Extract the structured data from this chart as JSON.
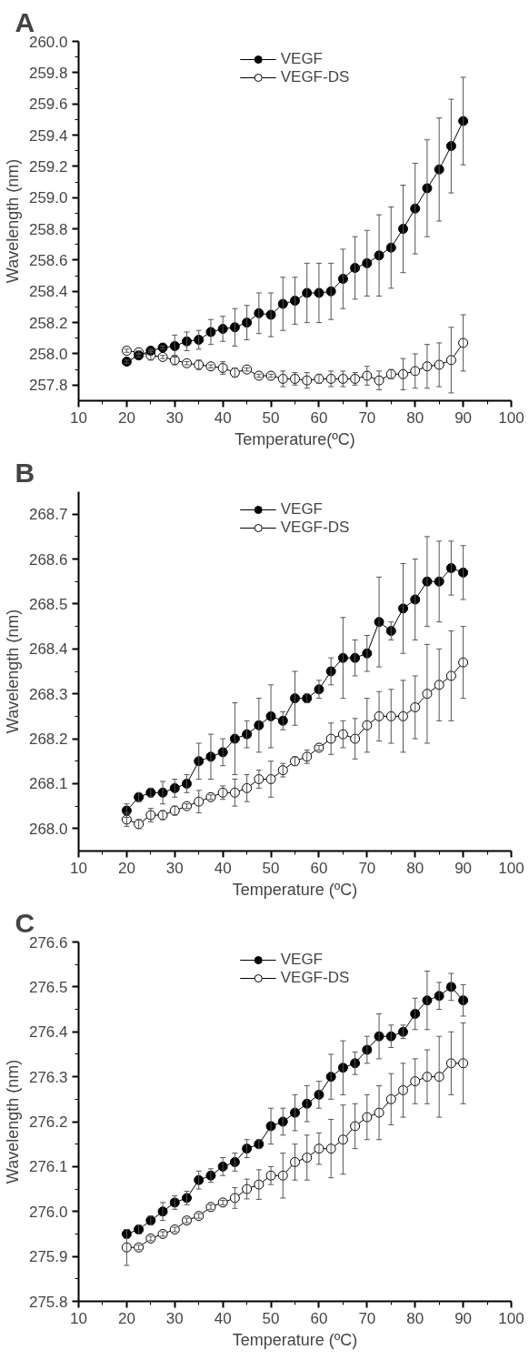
{
  "chart_data": [
    {
      "type": "line",
      "title": "A",
      "xlabel": "Temperature(ºC)",
      "ylabel": "Wavelength (nm)",
      "legend": "top",
      "marker": "circle",
      "grid": false,
      "x": [
        20,
        22.5,
        25,
        27.5,
        30,
        32.5,
        35,
        37.5,
        40,
        42.5,
        45,
        47.5,
        50,
        52.5,
        55,
        57.5,
        60,
        62.5,
        65,
        67.5,
        70,
        72.5,
        75,
        77.5,
        80,
        82.5,
        85,
        87.5,
        90
      ],
      "xlim": [
        10,
        100
      ],
      "xticks": [
        10,
        20,
        30,
        40,
        50,
        60,
        70,
        80,
        90,
        100
      ],
      "ylim": [
        257.7,
        260.0
      ],
      "yticks": [
        {
          "value": 257.8,
          "label": "257.8"
        },
        {
          "value": 258.0,
          "label": "258.0"
        },
        {
          "value": 258.2,
          "label": "258.2"
        },
        {
          "value": 258.4,
          "label": "258.4"
        },
        {
          "value": 258.6,
          "label": "258.6"
        },
        {
          "value": 258.8,
          "label": "258.8"
        },
        {
          "value": 259.0,
          "label": "259.0"
        },
        {
          "value": 259.2,
          "label": "259.2"
        },
        {
          "value": 259.4,
          "label": "259.4"
        },
        {
          "value": 259.6,
          "label": "259.6"
        },
        {
          "value": 259.8,
          "label": "259.8"
        },
        {
          "value": 260.0,
          "label": "260.0"
        }
      ],
      "series": [
        {
          "name": "VEGF",
          "color": "#000000",
          "values": [
            257.95,
            257.99,
            258.02,
            258.04,
            258.05,
            258.08,
            258.09,
            258.14,
            258.16,
            258.17,
            258.2,
            258.26,
            258.25,
            258.32,
            258.34,
            258.39,
            258.39,
            258.4,
            258.48,
            258.55,
            258.58,
            258.63,
            258.68,
            258.8,
            258.93,
            259.06,
            259.18,
            259.33,
            259.49
          ],
          "errors": [
            0.01,
            0.01,
            0.01,
            0.01,
            0.07,
            0.06,
            0.06,
            0.08,
            0.08,
            0.12,
            0.11,
            0.13,
            0.14,
            0.17,
            0.15,
            0.19,
            0.19,
            0.18,
            0.19,
            0.2,
            0.21,
            0.26,
            0.26,
            0.28,
            0.29,
            0.31,
            0.33,
            0.3,
            0.28
          ]
        },
        {
          "name": "VEGF-DS",
          "color": "#000000",
          "values": [
            258.02,
            258.01,
            257.99,
            257.98,
            257.96,
            257.94,
            257.93,
            257.92,
            257.91,
            257.88,
            257.9,
            257.86,
            257.86,
            257.84,
            257.84,
            257.83,
            257.84,
            257.84,
            257.84,
            257.84,
            257.86,
            257.83,
            257.87,
            257.87,
            257.89,
            257.92,
            257.93,
            257.96,
            258.07
          ],
          "errors": [
            0.01,
            0.01,
            0.03,
            0.01,
            0.03,
            0.01,
            0.03,
            0.01,
            0.04,
            0.03,
            0.01,
            0.01,
            0.01,
            0.05,
            0.04,
            0.05,
            0.03,
            0.05,
            0.05,
            0.04,
            0.06,
            0.06,
            0.03,
            0.1,
            0.11,
            0.14,
            0.14,
            0.21,
            0.18
          ]
        }
      ]
    },
    {
      "type": "line",
      "title": "B",
      "xlabel": "Temperature (ºC)",
      "ylabel": "Wavelength (nm)",
      "legend": "top",
      "marker": "circle",
      "grid": false,
      "x": [
        20,
        22.5,
        25,
        27.5,
        30,
        32.5,
        35,
        37.5,
        40,
        42.5,
        45,
        47.5,
        50,
        52.5,
        55,
        57.5,
        60,
        62.5,
        65,
        67.5,
        70,
        72.5,
        75,
        77.5,
        80,
        82.5,
        85,
        87.5,
        90
      ],
      "xlim": [
        10,
        100
      ],
      "xticks": [
        10,
        20,
        30,
        40,
        50,
        60,
        70,
        80,
        90,
        100
      ],
      "ylim": [
        267.95,
        268.75
      ],
      "yticks": [
        {
          "value": 268.0,
          "label": "268.0"
        },
        {
          "value": 268.1,
          "label": "268.1"
        },
        {
          "value": 268.2,
          "label": "268.2"
        },
        {
          "value": 268.3,
          "label": "268.3"
        },
        {
          "value": 268.4,
          "label": "268.4"
        },
        {
          "value": 268.5,
          "label": "268.5"
        },
        {
          "value": 268.6,
          "label": "268.6"
        },
        {
          "value": 268.7,
          "label": "268.7"
        }
      ],
      "series": [
        {
          "name": "VEGF",
          "color": "#000000",
          "values": [
            268.04,
            268.07,
            268.08,
            268.08,
            268.09,
            268.1,
            268.15,
            268.16,
            268.17,
            268.2,
            268.21,
            268.23,
            268.25,
            268.24,
            268.29,
            268.29,
            268.31,
            268.35,
            268.38,
            268.38,
            268.39,
            268.46,
            268.44,
            268.49,
            268.51,
            268.55,
            268.55,
            268.58,
            268.57
          ],
          "errors": [
            0.015,
            0.01,
            0.01,
            0.025,
            0.02,
            0.02,
            0.04,
            0.05,
            0.03,
            0.08,
            0.03,
            0.06,
            0.07,
            0.02,
            0.06,
            0.01,
            0.02,
            0.03,
            0.09,
            0.04,
            0.04,
            0.1,
            0.02,
            0.1,
            0.09,
            0.1,
            0.09,
            0.06,
            0.06
          ]
        },
        {
          "name": "VEGF-DS",
          "color": "#000000",
          "values": [
            268.02,
            268.01,
            268.03,
            268.03,
            268.04,
            268.05,
            268.06,
            268.07,
            268.08,
            268.08,
            268.09,
            268.11,
            268.11,
            268.13,
            268.15,
            268.16,
            268.18,
            268.2,
            268.21,
            268.2,
            268.23,
            268.25,
            268.25,
            268.25,
            268.27,
            268.3,
            268.32,
            268.34,
            268.37
          ],
          "errors": [
            0.015,
            0.01,
            0.015,
            0.01,
            0.01,
            0.005,
            0.025,
            0.005,
            0.015,
            0.03,
            0.03,
            0.02,
            0.04,
            0.015,
            0.01,
            0.015,
            0.005,
            0.035,
            0.03,
            0.045,
            0.06,
            0.055,
            0.06,
            0.08,
            0.07,
            0.11,
            0.08,
            0.1,
            0.08
          ]
        }
      ]
    },
    {
      "type": "line",
      "title": "C",
      "xlabel": "Temperature (ºC)",
      "ylabel": "Wavelength (nm)",
      "legend": "top",
      "marker": "circle",
      "grid": false,
      "x": [
        20,
        22.5,
        25,
        27.5,
        30,
        32.5,
        35,
        37.5,
        40,
        42.5,
        45,
        47.5,
        50,
        52.5,
        55,
        57.5,
        60,
        62.5,
        65,
        67.5,
        70,
        72.5,
        75,
        77.5,
        80,
        82.5,
        85,
        87.5,
        90
      ],
      "xlim": [
        10,
        100
      ],
      "xticks": [
        10,
        20,
        30,
        40,
        50,
        60,
        70,
        80,
        90,
        100
      ],
      "ylim": [
        275.8,
        276.6
      ],
      "yticks": [
        {
          "value": 275.8,
          "label": "275.8"
        },
        {
          "value": 275.9,
          "label": "275.9"
        },
        {
          "value": 276.0,
          "label": "276.0"
        },
        {
          "value": 276.1,
          "label": "276.1"
        },
        {
          "value": 276.2,
          "label": "276.2"
        },
        {
          "value": 276.3,
          "label": "276.3"
        },
        {
          "value": 276.4,
          "label": "276.4"
        },
        {
          "value": 276.5,
          "label": "276.5"
        },
        {
          "value": 276.6,
          "label": "276.6"
        }
      ],
      "series": [
        {
          "name": "VEGF",
          "color": "#000000",
          "values": [
            275.95,
            275.96,
            275.98,
            276.0,
            276.02,
            276.03,
            276.07,
            276.08,
            276.1,
            276.11,
            276.14,
            276.15,
            276.19,
            276.2,
            276.22,
            276.24,
            276.26,
            276.3,
            276.32,
            276.33,
            276.36,
            276.39,
            276.39,
            276.4,
            276.44,
            276.47,
            276.48,
            276.5,
            276.47
          ],
          "errors": [
            0.01,
            0.01,
            0.01,
            0.02,
            0.015,
            0.015,
            0.02,
            0.015,
            0.02,
            0.02,
            0.02,
            0.01,
            0.04,
            0.03,
            0.04,
            0.04,
            0.03,
            0.05,
            0.06,
            0.025,
            0.03,
            0.05,
            0.025,
            0.015,
            0.035,
            0.065,
            0.03,
            0.03,
            0.035
          ]
        },
        {
          "name": "VEGF-DS",
          "color": "#000000",
          "values": [
            275.92,
            275.92,
            275.94,
            275.95,
            275.96,
            275.98,
            275.99,
            276.01,
            276.02,
            276.03,
            276.05,
            276.06,
            276.08,
            276.08,
            276.11,
            276.12,
            276.14,
            276.14,
            276.16,
            276.19,
            276.21,
            276.22,
            276.25,
            276.27,
            276.29,
            276.3,
            276.3,
            276.33,
            276.33
          ],
          "errors": [
            0.04,
            0.005,
            0.005,
            0.005,
            0.005,
            0.005,
            0.005,
            0.005,
            0.005,
            0.023,
            0.022,
            0.033,
            0.02,
            0.05,
            0.04,
            0.05,
            0.035,
            0.065,
            0.077,
            0.05,
            0.05,
            0.06,
            0.057,
            0.06,
            0.05,
            0.06,
            0.09,
            0.07,
            0.09
          ]
        }
      ]
    }
  ]
}
